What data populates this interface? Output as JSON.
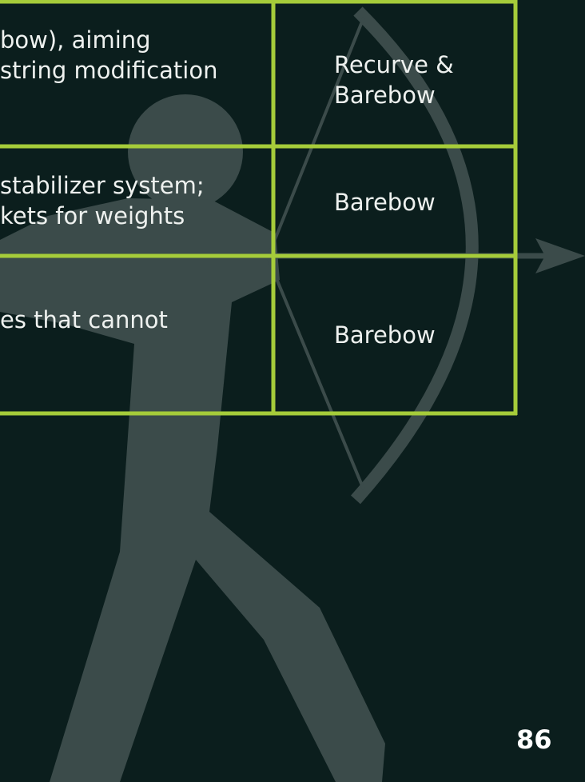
{
  "table": {
    "rows": [
      {
        "description": [
          "bow), aiming",
          "string modification"
        ],
        "division": [
          "Recurve &",
          "Barebow"
        ]
      },
      {
        "description": [
          "stabilizer system;",
          "kets for weights"
        ],
        "division": [
          "Barebow"
        ]
      },
      {
        "description": [
          "es that cannot"
        ],
        "division": [
          "Barebow"
        ]
      }
    ]
  },
  "page_number": "86"
}
